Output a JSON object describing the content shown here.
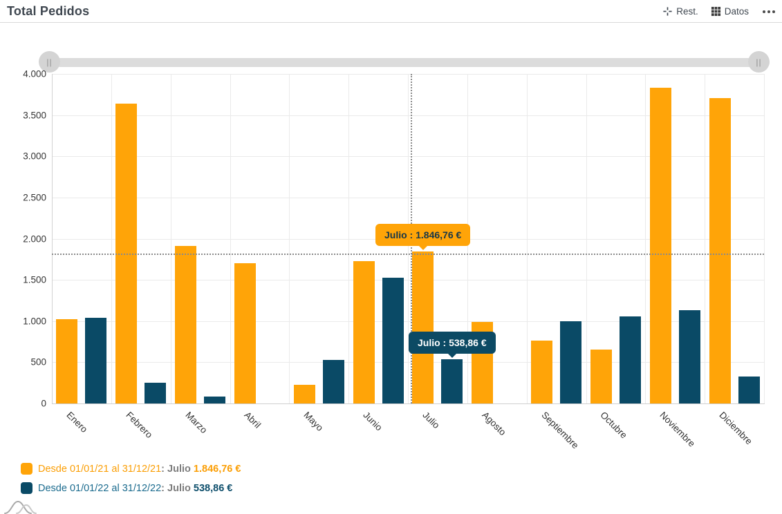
{
  "header": {
    "title": "Total Pedidos",
    "restore_label": "Rest.",
    "data_label": "Datos",
    "icons": {
      "restore": "reset-crosshair-icon",
      "data": "grid-table-icon",
      "more": "ellipsis-icon",
      "navigator": "bell-curves-icon"
    }
  },
  "slider": {
    "left_grip": "||",
    "right_grip": "||"
  },
  "chart_data": {
    "type": "bar",
    "title": "Total Pedidos",
    "categories": [
      "Enero",
      "Febrero",
      "Marzo",
      "Abril",
      "Mayo",
      "Junio",
      "Julio",
      "Agosto",
      "Septiembre",
      "Octubre",
      "Noviembre",
      "Diciembre"
    ],
    "series": [
      {
        "name": "Desde 01/01/21 al 31/12/21",
        "color": "#FFA408",
        "values": [
          1020,
          3640,
          1910,
          1700,
          230,
          1730,
          1846.76,
          990,
          760,
          655,
          3835,
          3710
        ]
      },
      {
        "name": "Desde 01/01/22 al 31/12/22",
        "color": "#0A4A66",
        "values": [
          1040,
          250,
          85,
          0,
          530,
          1525,
          538.86,
          0,
          1000,
          1060,
          1135,
          325
        ]
      }
    ],
    "ylim": [
      0,
      4000
    ],
    "ytick_step": 500,
    "ytick_labels_top_to_bottom": [
      "4.000",
      "3.500",
      "3.000",
      "2.500",
      "2.000",
      "1.500",
      "1.000",
      "500",
      "0"
    ],
    "grid": true,
    "legend_position": "bottom-left",
    "highlight": {
      "category": "Julio",
      "crosshair_value": 1846.76,
      "tooltips": [
        {
          "series": 0,
          "label": "Julio : 1.846,76 €"
        },
        {
          "series": 1,
          "label": "Julio : 538,86 €"
        }
      ]
    }
  },
  "legend": {
    "items": [
      {
        "range": "Desde 01/01/21 al 31/12/21",
        "sep": ":",
        "month": "Julio",
        "value": "1.846,76 €"
      },
      {
        "range": "Desde 01/01/22 al 31/12/22",
        "sep": ":",
        "month": "Julio",
        "value": "538,86 €"
      }
    ]
  },
  "colors": {
    "series_2021": "#FFA408",
    "series_2022": "#0A4A66",
    "title_text": "#3F4750",
    "axis_text": "#333333",
    "gridline": "#EAEAEA",
    "slider_track": "#DCDCDC",
    "tooltip_orange_text": "#17374A",
    "tooltip_teal_text": "#FFFFFF"
  }
}
